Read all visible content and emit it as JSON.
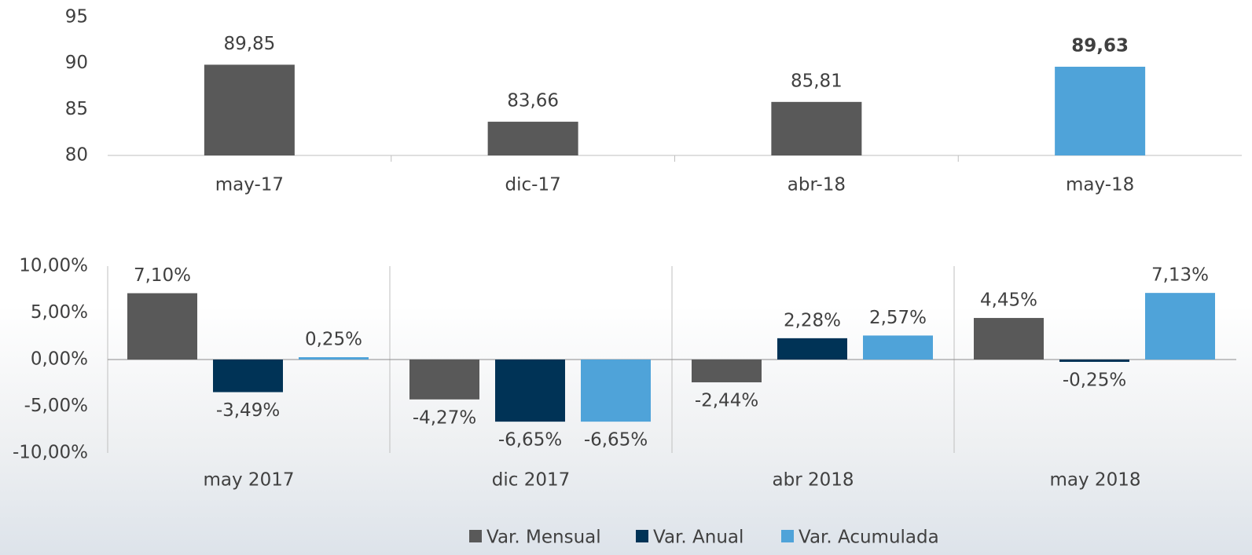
{
  "chart_data": [
    {
      "type": "bar",
      "categories": [
        "may-17",
        "dic-17",
        "abr-18",
        "may-18"
      ],
      "values": [
        89.85,
        83.66,
        85.81,
        89.63
      ],
      "value_labels": [
        "89,85",
        "83,66",
        "85,81",
        "89,63"
      ],
      "colors": [
        "#595959",
        "#595959",
        "#595959",
        "#4fa3d9"
      ],
      "highlight_index": 3,
      "ylim": [
        80,
        95
      ],
      "yticks": [
        80,
        85,
        90,
        95
      ],
      "grid": false
    },
    {
      "type": "grouped_bar",
      "categories": [
        "may 2017",
        "dic 2017",
        "abr 2018",
        "may 2018"
      ],
      "series": [
        {
          "name": "Var. Mensual",
          "color": "#595959",
          "values": [
            7.1,
            -4.27,
            -2.44,
            4.45
          ],
          "value_labels": [
            "7,10%",
            "-4,27%",
            "-2,44%",
            "4,45%"
          ]
        },
        {
          "name": "Var. Anual",
          "color": "#003356",
          "values": [
            -3.49,
            -6.65,
            2.28,
            -0.25
          ],
          "value_labels": [
            "-3,49%",
            "-6,65%",
            "2,28%",
            "-0,25%"
          ]
        },
        {
          "name": "Var. Acumulada",
          "color": "#4fa3d9",
          "values": [
            0.25,
            -6.65,
            2.57,
            7.13
          ],
          "value_labels": [
            "0,25%",
            "-6,65%",
            "2,57%",
            "7,13%"
          ]
        }
      ],
      "ylim": [
        -10,
        10
      ],
      "yticks": [
        {
          "value": -10,
          "label": "-10,00%"
        },
        {
          "value": -5,
          "label": "-5,00%"
        },
        {
          "value": 0,
          "label": "0,00%"
        },
        {
          "value": 5,
          "label": "5,00%"
        },
        {
          "value": 10,
          "label": "10,00%"
        }
      ],
      "legend": "bottom",
      "grid": false
    }
  ]
}
